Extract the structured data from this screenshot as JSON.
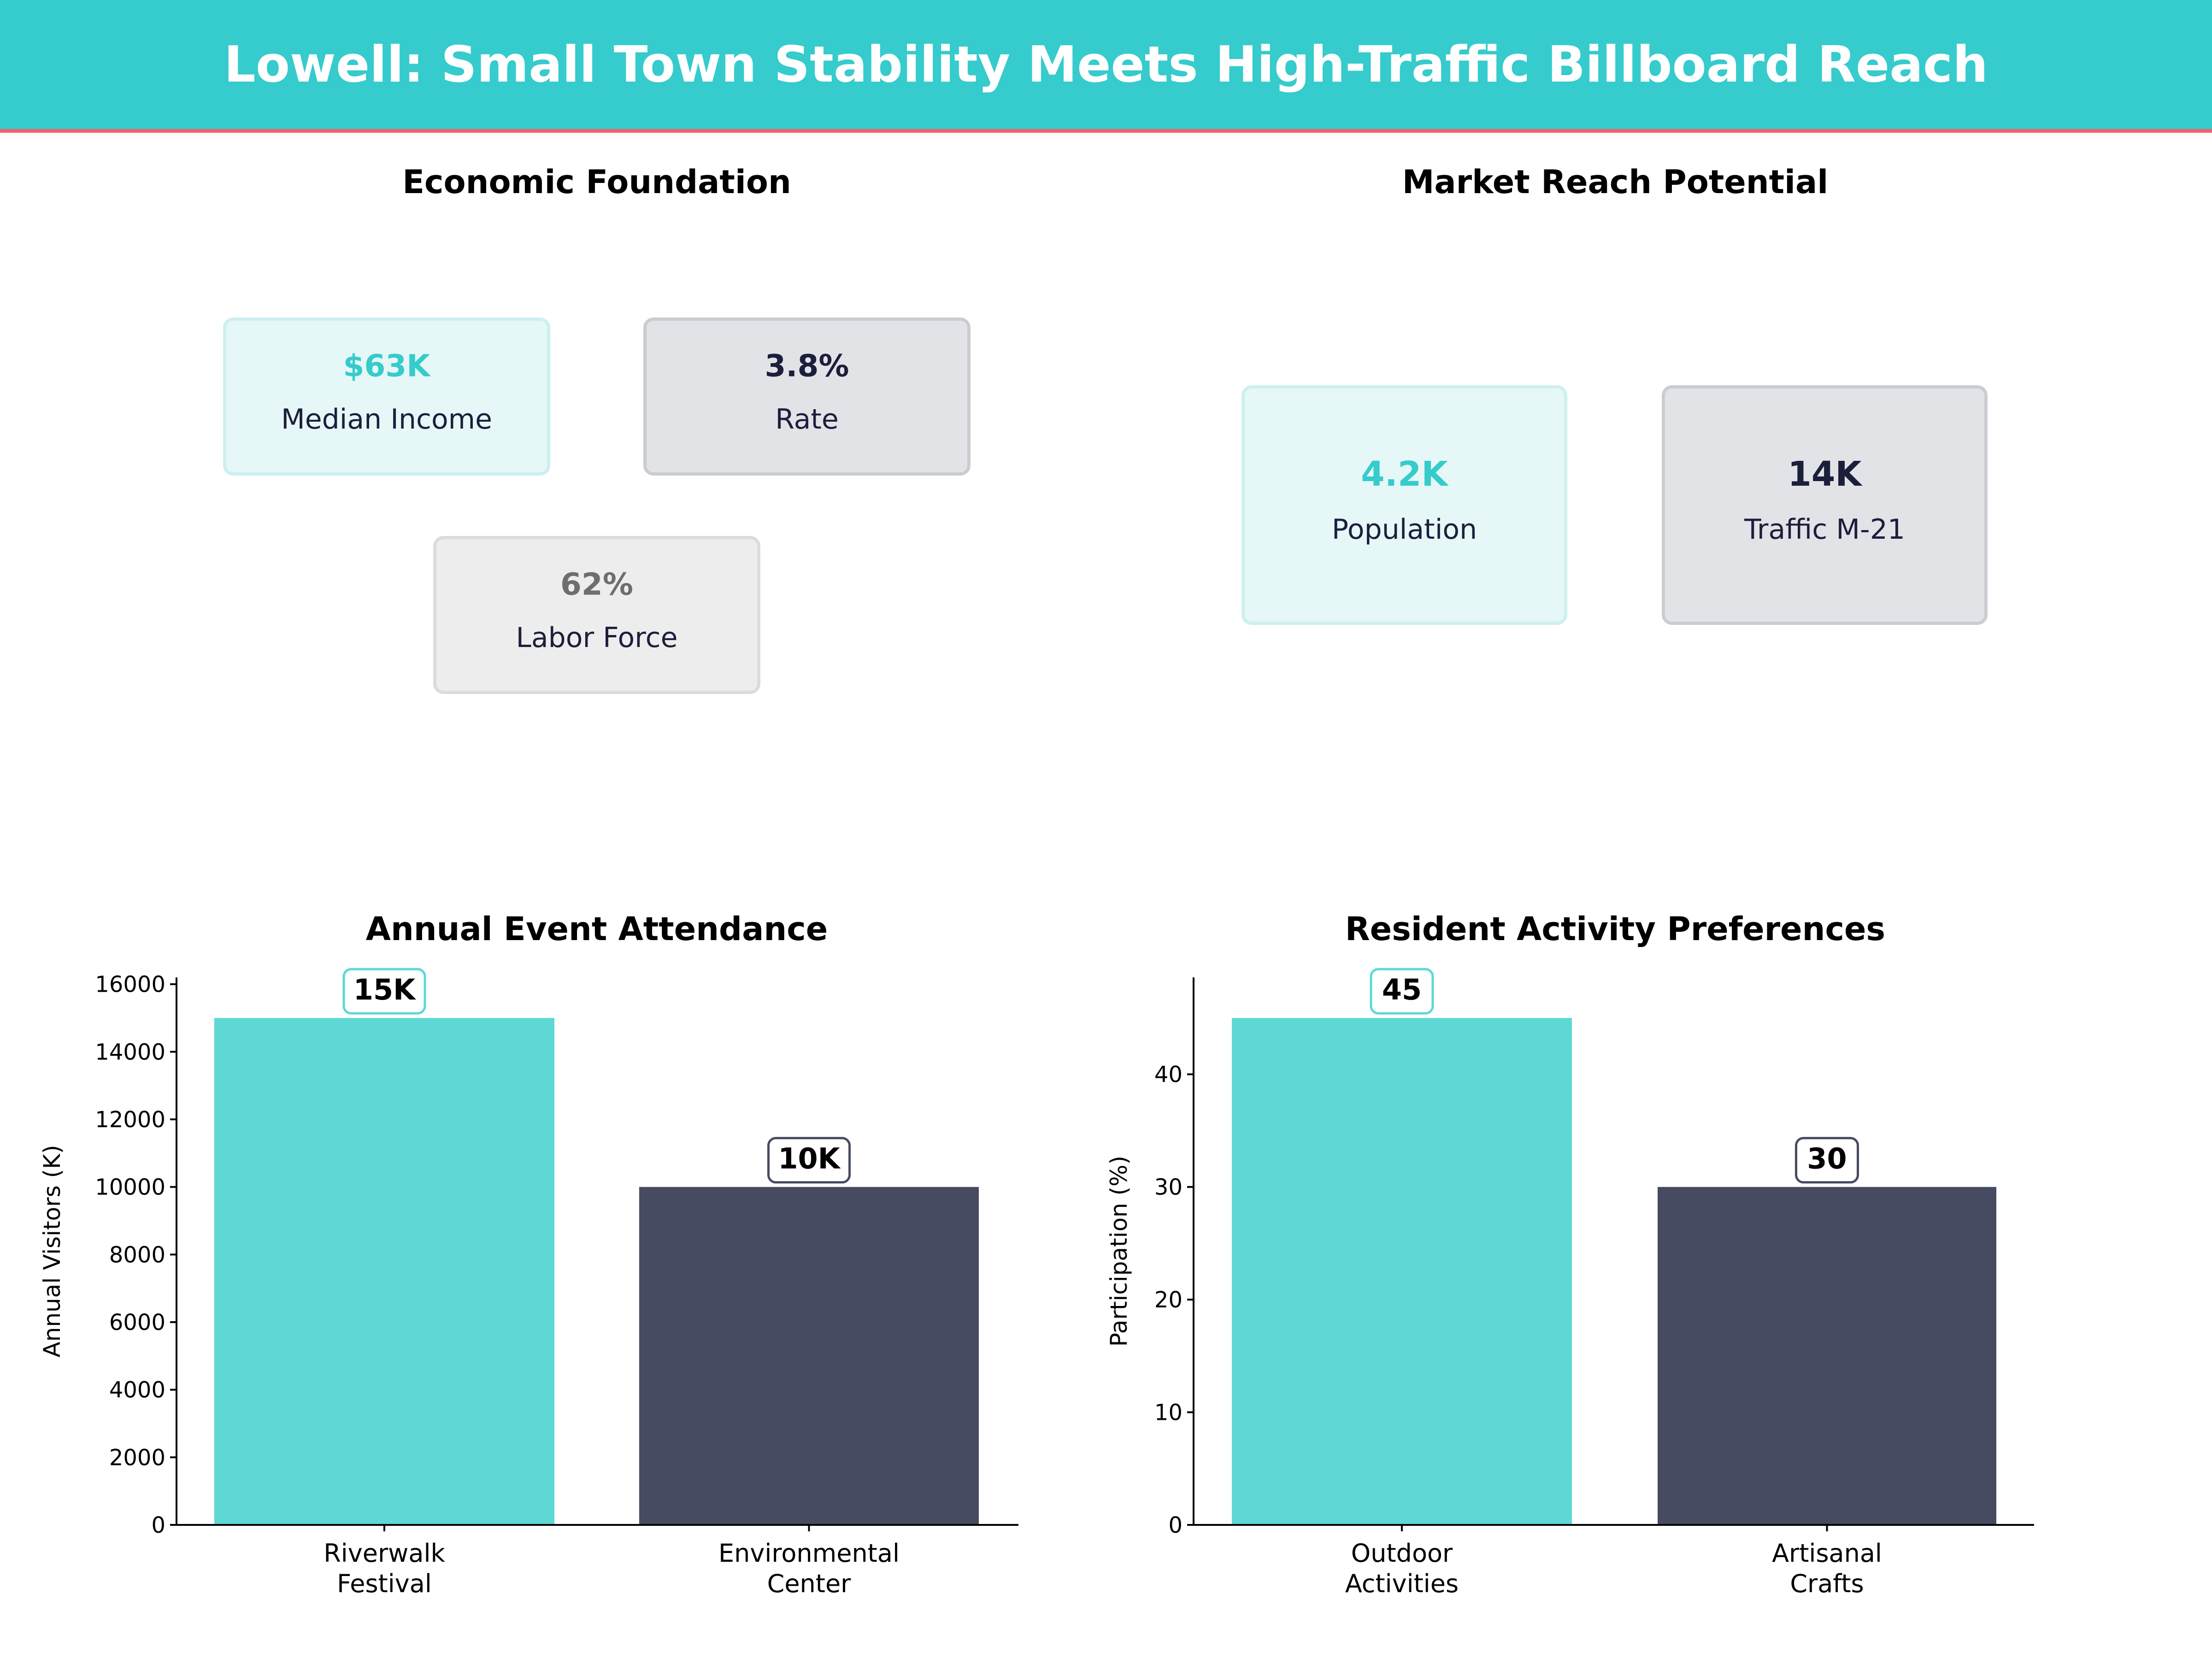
{
  "header": {
    "title": "Lowell: Small Town Stability Meets High-Traffic Billboard Reach"
  },
  "colors": {
    "header": "#36CBCC",
    "accent_line": "#F0616D",
    "teal": "#5DD8D5",
    "navy": "#464B61",
    "teal_text": "#36CBCC",
    "navy_text": "#1B1F3B",
    "gray_text": "#6E6E6E"
  },
  "economic": {
    "title": "Economic Foundation",
    "cards": [
      {
        "value": "$63K",
        "label": "Median Income"
      },
      {
        "value": "3.8%",
        "label": "Rate"
      },
      {
        "value": "62%",
        "label": "Labor Force"
      }
    ]
  },
  "market": {
    "title": "Market Reach Potential",
    "cards": [
      {
        "value": "4.2K",
        "label": "Population"
      },
      {
        "value": "14K",
        "label": "Traffic M-21"
      }
    ]
  },
  "chart_data": [
    {
      "type": "bar",
      "title": "Annual Event Attendance",
      "ylabel": "Annual Visitors (K)",
      "xlabel": "",
      "categories": [
        "Riverwalk\nFestival",
        "Environmental\nCenter"
      ],
      "values": [
        15000,
        10000
      ],
      "data_labels": [
        "15K",
        "10K"
      ],
      "bar_colors": [
        "#5DD8D5",
        "#464B61"
      ],
      "yticks": [
        0,
        2000,
        4000,
        6000,
        8000,
        10000,
        12000,
        14000,
        16000
      ],
      "ylim": [
        0,
        16200
      ],
      "grid": false
    },
    {
      "type": "bar",
      "title": "Resident Activity Preferences",
      "ylabel": "Participation (%)",
      "xlabel": "",
      "categories": [
        "Outdoor\nActivities",
        "Artisanal\nCrafts"
      ],
      "values": [
        45,
        30
      ],
      "data_labels": [
        "45",
        "30"
      ],
      "bar_colors": [
        "#5DD8D5",
        "#464B61"
      ],
      "yticks": [
        0,
        10,
        20,
        30,
        40
      ],
      "ylim": [
        0,
        48.6
      ],
      "grid": false
    }
  ]
}
